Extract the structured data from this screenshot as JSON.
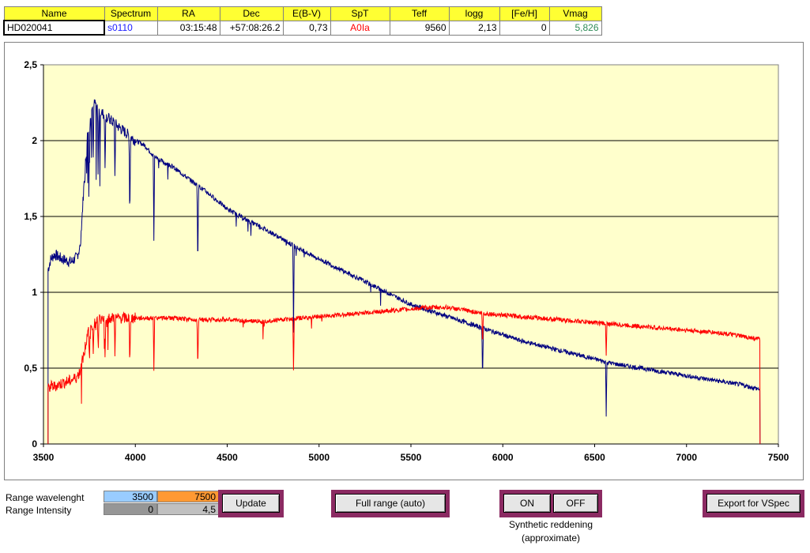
{
  "table": {
    "headers": [
      "Name",
      "Spectrum",
      "RA",
      "Dec",
      "E(B-V)",
      "SpT",
      "Teff",
      "logg",
      "[Fe/H]",
      "Vmag"
    ],
    "values": [
      "HD020041",
      "s0110",
      "03:15:48",
      "+57:08:26.2",
      "0,73",
      "A0Ia",
      "9560",
      "2,13",
      "0",
      "5,826"
    ]
  },
  "colors": {
    "spectrum": "#1a1aff",
    "spt": "#ff0000",
    "vmag": "#2e8b57",
    "series_dereddened": "#000080",
    "series_observed": "#ff0000",
    "plot_bg": "#ffffcc"
  },
  "chart_data": {
    "type": "line",
    "xlim": [
      3500,
      7500
    ],
    "ylim": [
      0,
      2.5
    ],
    "x_ticks": [
      "3500",
      "4000",
      "4500",
      "5000",
      "5500",
      "6000",
      "6500",
      "7000",
      "7500"
    ],
    "y_ticks": [
      "0",
      "0,5",
      "1",
      "1,5",
      "2",
      "2,5"
    ],
    "grid": "horizontal",
    "series": [
      {
        "color": "#000080",
        "x": [
          3525,
          3540,
          3560,
          3600,
          3650,
          3680,
          3700,
          3720,
          3740,
          3760,
          3780,
          3800,
          3850,
          3900,
          3950,
          4000,
          4050,
          4100,
          4150,
          4200,
          4300,
          4400,
          4500,
          4600,
          4700,
          4800,
          4900,
          5000,
          5100,
          5200,
          5300,
          5400,
          5500,
          5600,
          5700,
          5800,
          5900,
          6000,
          6100,
          6200,
          6300,
          6400,
          6500,
          6600,
          6700,
          6800,
          6900,
          7000,
          7100,
          7200,
          7300,
          7400
        ],
        "y": [
          1.15,
          1.22,
          1.25,
          1.22,
          1.2,
          1.23,
          1.3,
          1.7,
          2.05,
          2.2,
          2.25,
          2.2,
          2.15,
          2.1,
          2.05,
          2.0,
          1.97,
          1.9,
          1.86,
          1.83,
          1.74,
          1.65,
          1.55,
          1.48,
          1.42,
          1.35,
          1.28,
          1.22,
          1.16,
          1.1,
          1.04,
          0.98,
          0.92,
          0.88,
          0.84,
          0.8,
          0.76,
          0.72,
          0.68,
          0.65,
          0.62,
          0.59,
          0.56,
          0.53,
          0.51,
          0.49,
          0.47,
          0.45,
          0.43,
          0.41,
          0.39,
          0.36
        ]
      },
      {
        "color": "#ff0000",
        "x": [
          3525,
          3540,
          3560,
          3600,
          3650,
          3680,
          3700,
          3720,
          3740,
          3760,
          3780,
          3800,
          3850,
          3900,
          3950,
          4000,
          4050,
          4100,
          4150,
          4200,
          4300,
          4400,
          4500,
          4600,
          4700,
          4800,
          4900,
          5000,
          5100,
          5200,
          5300,
          5400,
          5500,
          5600,
          5700,
          5800,
          5900,
          6000,
          6100,
          6200,
          6300,
          6400,
          6500,
          6600,
          6700,
          6800,
          6900,
          7000,
          7100,
          7200,
          7300,
          7400
        ],
        "y": [
          0.36,
          0.38,
          0.38,
          0.4,
          0.42,
          0.44,
          0.48,
          0.6,
          0.72,
          0.78,
          0.8,
          0.82,
          0.83,
          0.83,
          0.83,
          0.83,
          0.83,
          0.83,
          0.83,
          0.83,
          0.82,
          0.82,
          0.82,
          0.81,
          0.81,
          0.82,
          0.83,
          0.84,
          0.85,
          0.86,
          0.87,
          0.88,
          0.89,
          0.9,
          0.9,
          0.88,
          0.86,
          0.85,
          0.84,
          0.83,
          0.82,
          0.81,
          0.8,
          0.79,
          0.78,
          0.77,
          0.76,
          0.75,
          0.74,
          0.73,
          0.71,
          0.69
        ]
      }
    ],
    "absorption_lines": [
      3750,
      3771,
      3798,
      3835,
      3889,
      3970,
      4101,
      4340,
      4861,
      5890,
      6563
    ]
  },
  "controls": {
    "range_wavelength_label": "Range wavelenght",
    "range_intensity_label": "Range Intensity",
    "wl_min": "3500",
    "wl_max": "7500",
    "int_min": "0",
    "int_max": "4,5",
    "update_label": "Update",
    "full_range_label": "Full range (auto)",
    "on_label": "ON",
    "off_label": "OFF",
    "reddening_line1": "Synthetic reddening",
    "reddening_line2": "(approximate)",
    "export_label": "Export for VSpec"
  }
}
